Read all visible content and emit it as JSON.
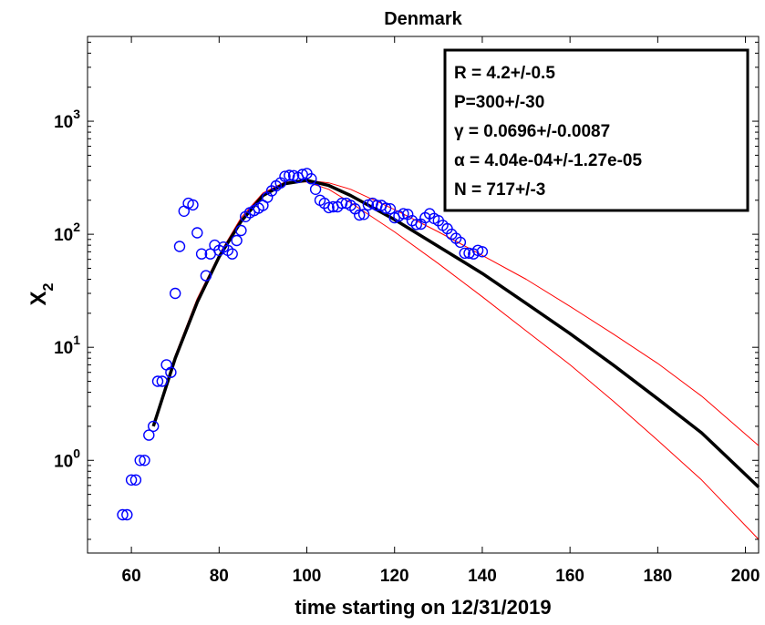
{
  "chart_data": {
    "type": "scatter",
    "title": "Denmark",
    "xlabel": "time starting on 12/31/2019",
    "ylabel_main": "X",
    "ylabel_sub": "2",
    "xlim": [
      50,
      203
    ],
    "ylim_log10": [
      -0.82,
      3.75
    ],
    "y_scale": "log",
    "grid": false,
    "x_ticks": [
      60,
      80,
      100,
      120,
      140,
      160,
      180,
      200
    ],
    "y_ticks": [
      {
        "base": "10",
        "exp": "0",
        "value": 1
      },
      {
        "base": "10",
        "exp": "1",
        "value": 10
      },
      {
        "base": "10",
        "exp": "2",
        "value": 100
      },
      {
        "base": "10",
        "exp": "3",
        "value": 1000
      }
    ],
    "legend_placement": "top-right",
    "annotation_lines": [
      "R = 4.2+/-0.5",
      "P=300+/-30",
      "γ = 0.0696+/-0.0087",
      "α = 4.04e-04+/-1.27e-05",
      "N = 717+/-3"
    ],
    "colors": {
      "markers": "#0000ff",
      "fit": "#000000",
      "bounds": "#ff0000"
    },
    "series": [
      {
        "type": "scatter",
        "marker": "circle-open",
        "points": [
          [
            58,
            0.33
          ],
          [
            59,
            0.33
          ],
          [
            60,
            0.67
          ],
          [
            61,
            0.67
          ],
          [
            62,
            1.0
          ],
          [
            63,
            1.0
          ],
          [
            64,
            1.67
          ],
          [
            65,
            2.0
          ],
          [
            66,
            5.0
          ],
          [
            67,
            5.0
          ],
          [
            68,
            7.0
          ],
          [
            69,
            6.0
          ],
          [
            70,
            30
          ],
          [
            71,
            78
          ],
          [
            72,
            160
          ],
          [
            73,
            188
          ],
          [
            74,
            182
          ],
          [
            75,
            103
          ],
          [
            76,
            67
          ],
          [
            77,
            43
          ],
          [
            78,
            67
          ],
          [
            79,
            80
          ],
          [
            80,
            72
          ],
          [
            81,
            77
          ],
          [
            82,
            72
          ],
          [
            83,
            67
          ],
          [
            84,
            88
          ],
          [
            85,
            108
          ],
          [
            86,
            143
          ],
          [
            87,
            155
          ],
          [
            88,
            162
          ],
          [
            89,
            170
          ],
          [
            90,
            180
          ],
          [
            91,
            212
          ],
          [
            92,
            242
          ],
          [
            93,
            268
          ],
          [
            94,
            285
          ],
          [
            95,
            325
          ],
          [
            96,
            332
          ],
          [
            97,
            330
          ],
          [
            98,
            318
          ],
          [
            99,
            338
          ],
          [
            100,
            345
          ],
          [
            101,
            310
          ],
          [
            102,
            250
          ],
          [
            103,
            200
          ],
          [
            104,
            188
          ],
          [
            105,
            172
          ],
          [
            106,
            175
          ],
          [
            107,
            175
          ],
          [
            108,
            188
          ],
          [
            109,
            188
          ],
          [
            110,
            180
          ],
          [
            111,
            168
          ],
          [
            112,
            148
          ],
          [
            113,
            150
          ],
          [
            114,
            182
          ],
          [
            115,
            188
          ],
          [
            116,
            180
          ],
          [
            117,
            180
          ],
          [
            118,
            170
          ],
          [
            119,
            168
          ],
          [
            120,
            140
          ],
          [
            121,
            145
          ],
          [
            122,
            152
          ],
          [
            123,
            150
          ],
          [
            124,
            132
          ],
          [
            125,
            122
          ],
          [
            126,
            123
          ],
          [
            127,
            140
          ],
          [
            128,
            152
          ],
          [
            129,
            138
          ],
          [
            130,
            132
          ],
          [
            131,
            120
          ],
          [
            132,
            112
          ],
          [
            133,
            100
          ],
          [
            134,
            92
          ],
          [
            135,
            85
          ],
          [
            136,
            68
          ],
          [
            137,
            68
          ],
          [
            138,
            67
          ],
          [
            139,
            72
          ],
          [
            140,
            70
          ]
        ]
      },
      {
        "type": "line",
        "role": "fit",
        "points": [
          [
            65,
            2.0
          ],
          [
            70,
            8.0
          ],
          [
            75,
            25
          ],
          [
            80,
            63
          ],
          [
            85,
            130
          ],
          [
            90,
            220
          ],
          [
            95,
            280
          ],
          [
            100,
            300
          ],
          [
            105,
            270
          ],
          [
            110,
            220
          ],
          [
            120,
            135
          ],
          [
            130,
            78
          ],
          [
            140,
            45
          ],
          [
            150,
            24.5
          ],
          [
            160,
            13.2
          ],
          [
            170,
            6.9
          ],
          [
            180,
            3.5
          ],
          [
            190,
            1.75
          ],
          [
            203,
            0.58
          ]
        ]
      },
      {
        "type": "line",
        "role": "upper-bound",
        "points": [
          [
            65,
            2.0
          ],
          [
            70,
            8.0
          ],
          [
            75,
            25
          ],
          [
            80,
            63
          ],
          [
            85,
            130
          ],
          [
            90,
            220
          ],
          [
            95,
            275
          ],
          [
            100,
            300
          ],
          [
            105,
            285
          ],
          [
            110,
            250
          ],
          [
            120,
            165
          ],
          [
            130,
            105
          ],
          [
            140,
            65
          ],
          [
            150,
            40
          ],
          [
            160,
            23
          ],
          [
            170,
            13
          ],
          [
            180,
            7.2
          ],
          [
            190,
            3.7
          ],
          [
            203,
            1.35
          ]
        ]
      },
      {
        "type": "line",
        "role": "lower-bound",
        "points": [
          [
            65,
            2.0
          ],
          [
            70,
            8.5
          ],
          [
            75,
            27
          ],
          [
            80,
            66
          ],
          [
            85,
            140
          ],
          [
            90,
            232
          ],
          [
            95,
            290
          ],
          [
            100,
            290
          ],
          [
            105,
            250
          ],
          [
            110,
            190
          ],
          [
            120,
            105
          ],
          [
            130,
            55
          ],
          [
            140,
            28
          ],
          [
            150,
            14
          ],
          [
            160,
            7
          ],
          [
            170,
            3.3
          ],
          [
            180,
            1.5
          ],
          [
            190,
            0.67
          ],
          [
            203,
            0.2
          ]
        ]
      }
    ]
  }
}
